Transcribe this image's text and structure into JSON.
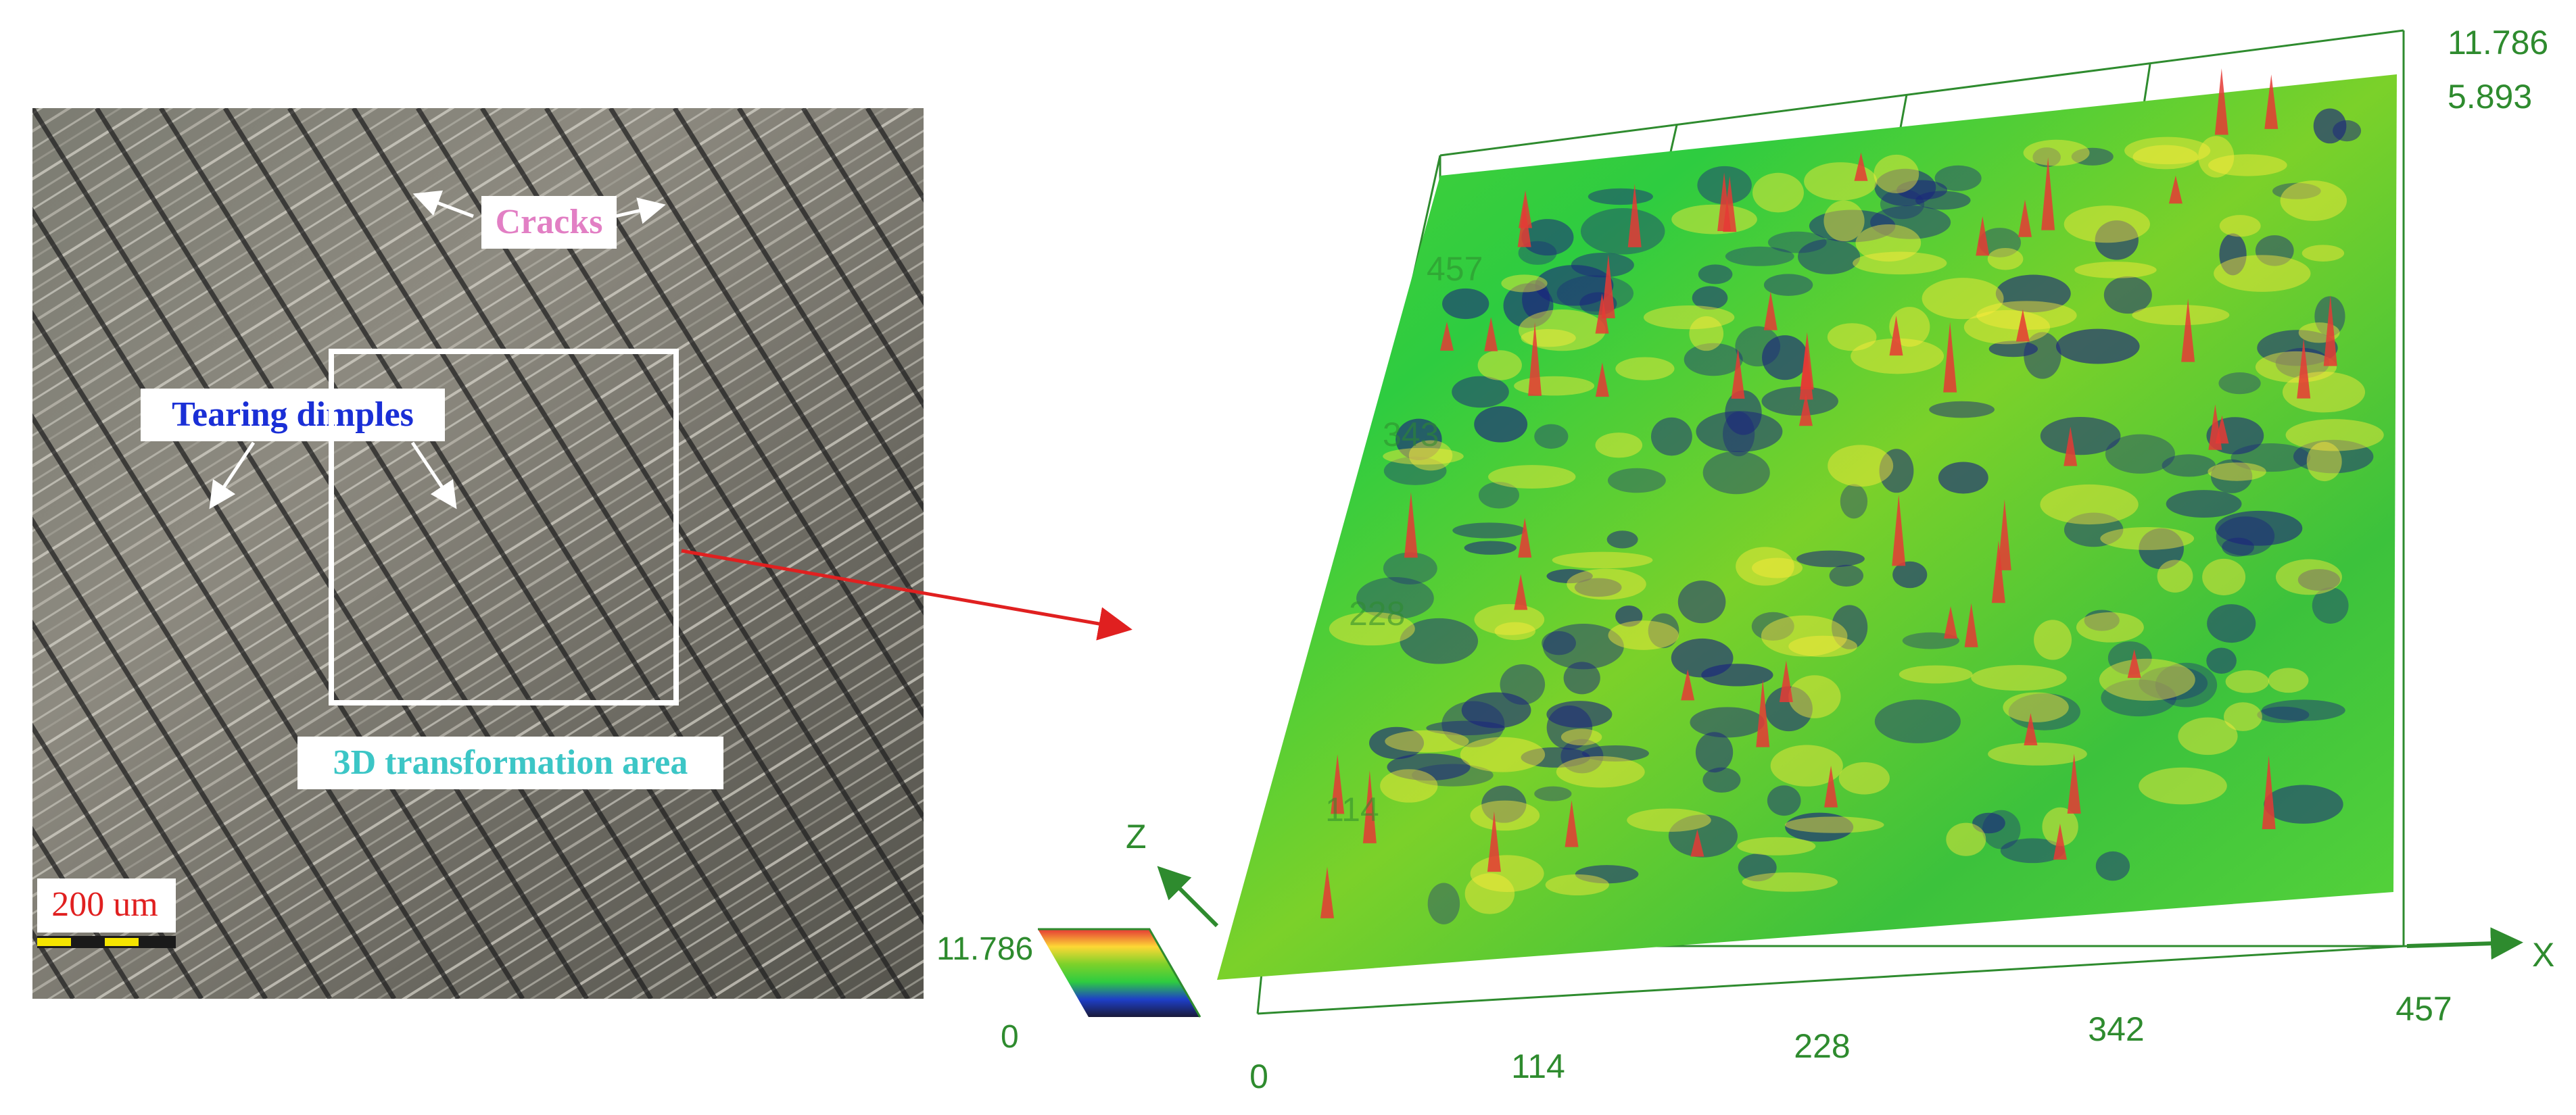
{
  "micrograph": {
    "label_cracks": "Cracks",
    "label_tearing_dimples": "Tearing dimples",
    "label_transformation_area": "3D transformation area",
    "scale_bar_text": "200 um"
  },
  "surface_plot": {
    "z_max_label": "11.786",
    "z_mid_label": "5.893",
    "x_ticks": [
      "0",
      "114",
      "228",
      "342",
      "457"
    ],
    "y_ticks": [
      "114",
      "228",
      "343",
      "457"
    ],
    "x_axis_name": "X",
    "z_axis_name": "Z",
    "colorbar": {
      "max_label": "11.786",
      "min_label": "0"
    },
    "colors": {
      "axis": "#2e8b2e",
      "low": "#1a237e",
      "mid": "#2ecc40",
      "high": "#e53935",
      "peak": "#ffeb3b"
    }
  },
  "arrow_color": "#e02020"
}
